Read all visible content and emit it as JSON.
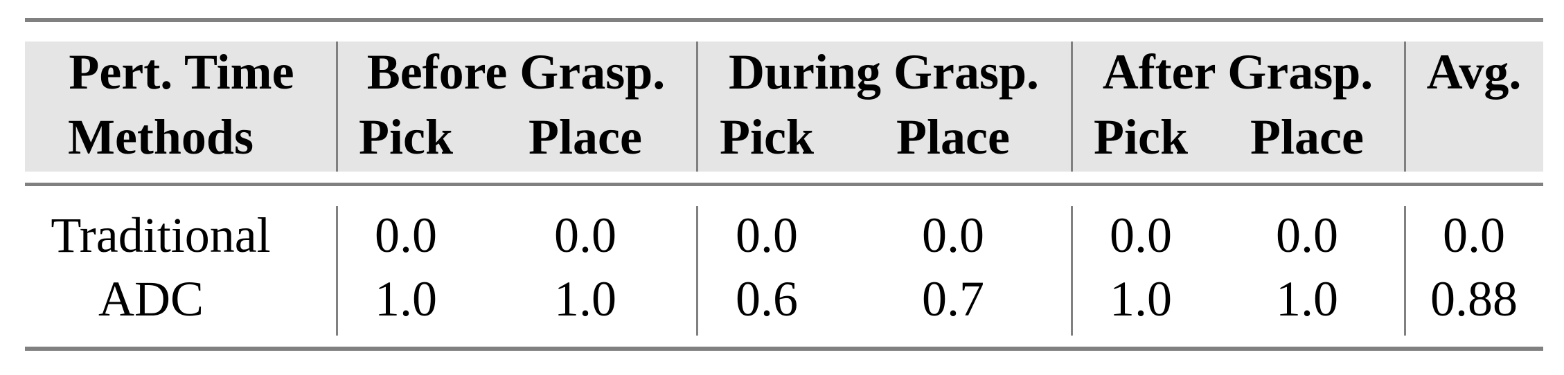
{
  "header": {
    "row1": {
      "corner": "Pert. Time",
      "groups": [
        "Before Grasp.",
        "During Grasp.",
        "After Grasp."
      ],
      "avg": "Avg."
    },
    "row2": {
      "corner": "Methods",
      "subcols": [
        "Pick",
        "Place",
        "Pick",
        "Place",
        "Pick",
        "Place"
      ]
    }
  },
  "rows": [
    {
      "method": "Traditional",
      "values": [
        "0.0",
        "0.0",
        "0.0",
        "0.0",
        "0.0",
        "0.0"
      ],
      "avg": "0.0"
    },
    {
      "method": "ADC",
      "values": [
        "1.0",
        "1.0",
        "0.6",
        "0.7",
        "1.0",
        "1.0"
      ],
      "avg": "0.88"
    }
  ],
  "colors": {
    "rule": "#808080",
    "header_bg": "#e5e5e5"
  }
}
